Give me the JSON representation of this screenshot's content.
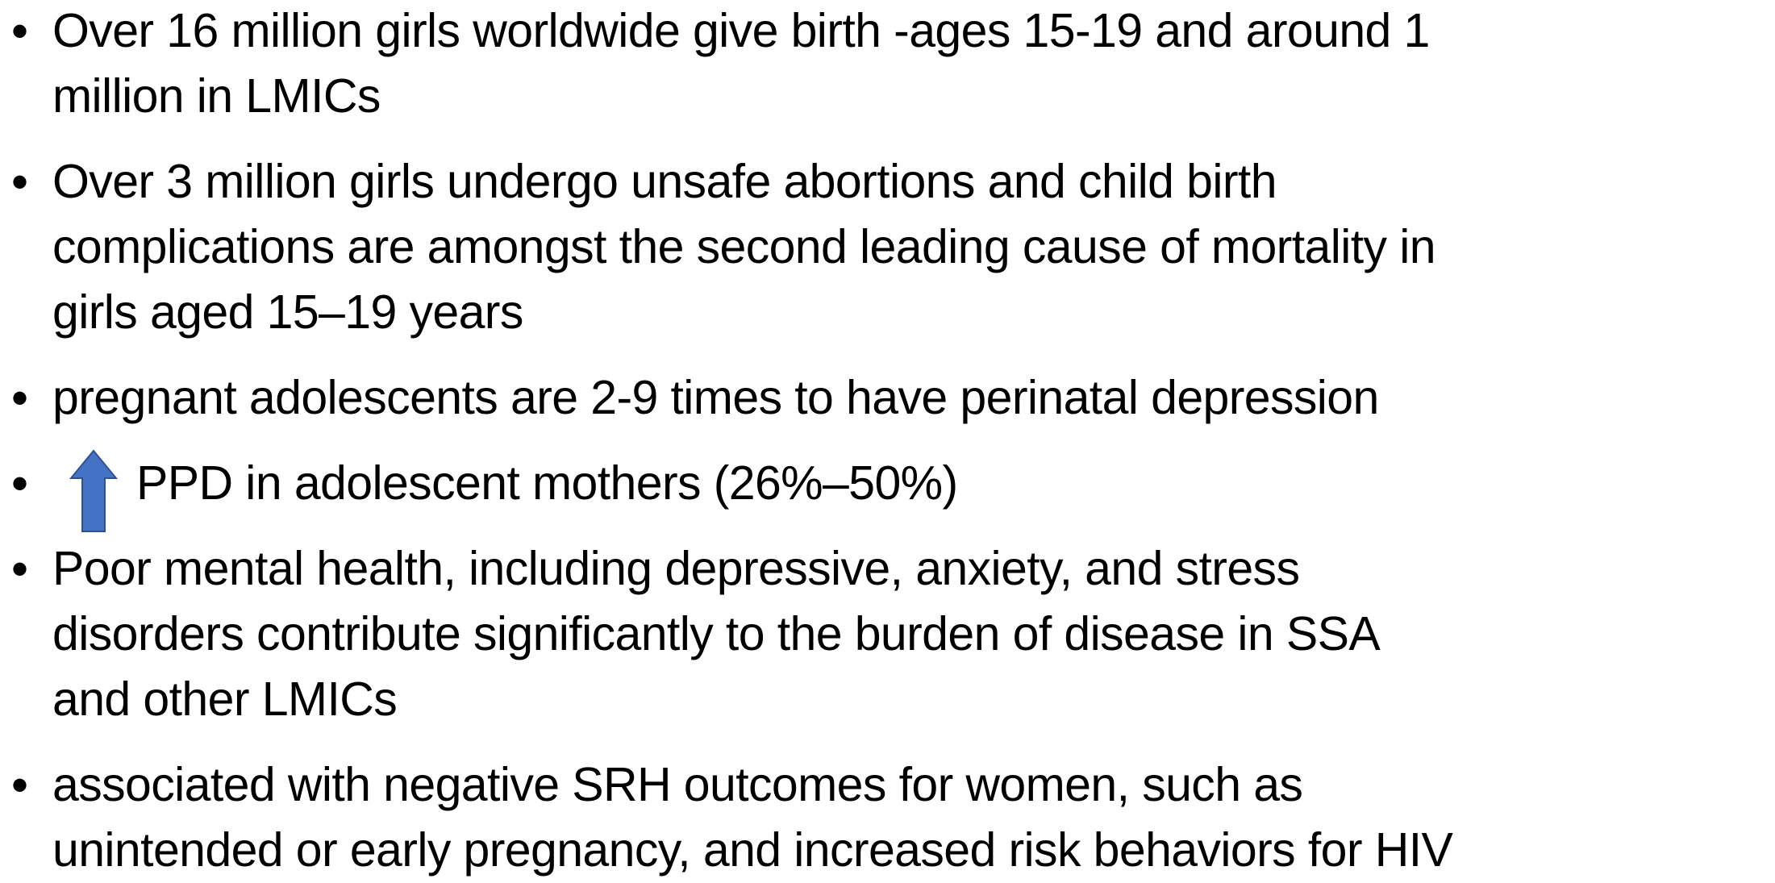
{
  "bullets": [
    {
      "lines": [
        "Over 16 million girls worldwide give birth -ages 15-19 and around 1",
        "million in LMICs"
      ]
    },
    {
      "lines": [
        "Over 3 million girls undergo unsafe abortions and child birth",
        "complications are amongst the second leading cause of mortality in",
        "girls aged 15–19 years"
      ]
    },
    {
      "lines": [
        "pregnant adolescents are 2-9 times to have perinatal depression"
      ]
    },
    {
      "lines": [
        "PPD in adolescent mothers (26%–50%)"
      ]
    },
    {
      "lines": [
        "Poor mental health, including depressive, anxiety, and stress",
        "disorders contribute significantly to the burden of disease in SSA",
        "and other LMICs"
      ]
    },
    {
      "lines": [
        "associated with negative SRH outcomes for women, such as",
        "unintended or early pregnancy, and increased risk behaviors for HIV"
      ]
    }
  ]
}
